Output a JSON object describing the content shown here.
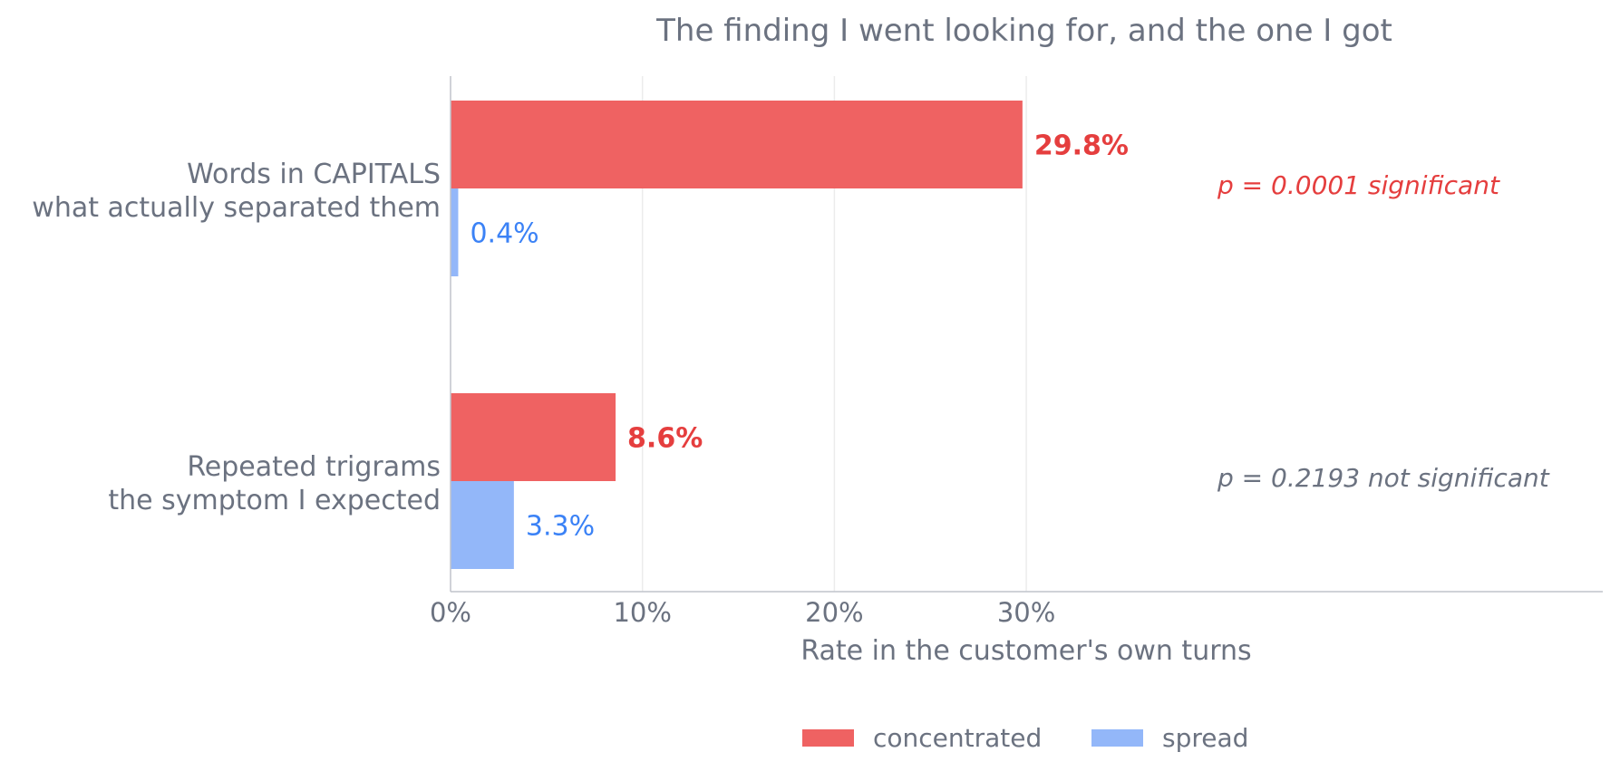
{
  "chart_data": {
    "type": "bar",
    "orientation": "horizontal",
    "title": "The finding I went looking for, and the one I got",
    "xlabel": "Rate in the customer's own turns",
    "xlim": [
      0,
      60
    ],
    "xticks": [
      {
        "value": 0,
        "label": "0%"
      },
      {
        "value": 10,
        "label": "10%"
      },
      {
        "value": 20,
        "label": "20%"
      },
      {
        "value": 30,
        "label": "30%"
      }
    ],
    "grid": "vertical",
    "legend_position": "bottom-center",
    "categories": [
      {
        "line1": "Words in CAPITALS",
        "line2": "what actually separated them"
      },
      {
        "line1": "Repeated trigrams",
        "line2": "the symptom I expected"
      }
    ],
    "series": [
      {
        "name": "concentrated",
        "color": "#ef6262",
        "label_color": "#e53e3e",
        "values": [
          29.8,
          8.6
        ],
        "labels": [
          "29.8%",
          "8.6%"
        ]
      },
      {
        "name": "spread",
        "color": "#93b7f9",
        "label_color": "#3b82f6",
        "values": [
          0.4,
          3.3
        ],
        "labels": [
          "0.4%",
          "3.3%"
        ]
      }
    ],
    "annotations": [
      {
        "text": "p = 0.0001   significant",
        "color": "#e53e3e"
      },
      {
        "text": "p = 0.2193   not significant",
        "color": "#6b7280"
      }
    ]
  }
}
